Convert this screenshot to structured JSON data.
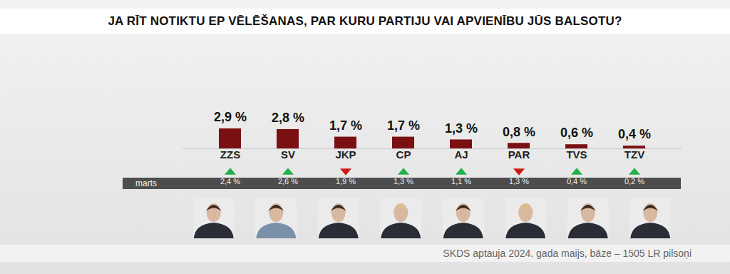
{
  "chart_data": {
    "type": "bar",
    "title": "JA RĪT NOTIKTU EP VĒLĒŠANAS, PAR KURU PARTIJU VAI APVIENĪBU JŪS BALSOTU?",
    "categories": [
      "ZZS",
      "SV",
      "JKP",
      "CP",
      "AJ",
      "PAR",
      "TVS",
      "TZV"
    ],
    "values": [
      2.9,
      2.8,
      1.7,
      1.7,
      1.3,
      0.8,
      0.6,
      0.4
    ],
    "value_labels": [
      "2,9 %",
      "2,8 %",
      "1,7 %",
      "1,7 %",
      "1,3 %",
      "0,8 %",
      "0,6 %",
      "0,4 %"
    ],
    "color": "#7b1013",
    "ylim": [
      0,
      3
    ],
    "data_labels": true,
    "tick_labels": "x",
    "previous": {
      "label": "marts",
      "values": [
        2.4,
        2.6,
        1.9,
        1.3,
        1.1,
        1.3,
        0.4,
        0.2
      ],
      "value_labels": [
        "2,4 %",
        "2,6 %",
        "1,9 %",
        "1,3 %",
        "1,1 %",
        "1,3 %",
        "0,4 %",
        "0,2 %"
      ]
    },
    "caption": "SKDS aptauja 2024. gada maijs, bāze – 1505 LR pilsoņi"
  }
}
